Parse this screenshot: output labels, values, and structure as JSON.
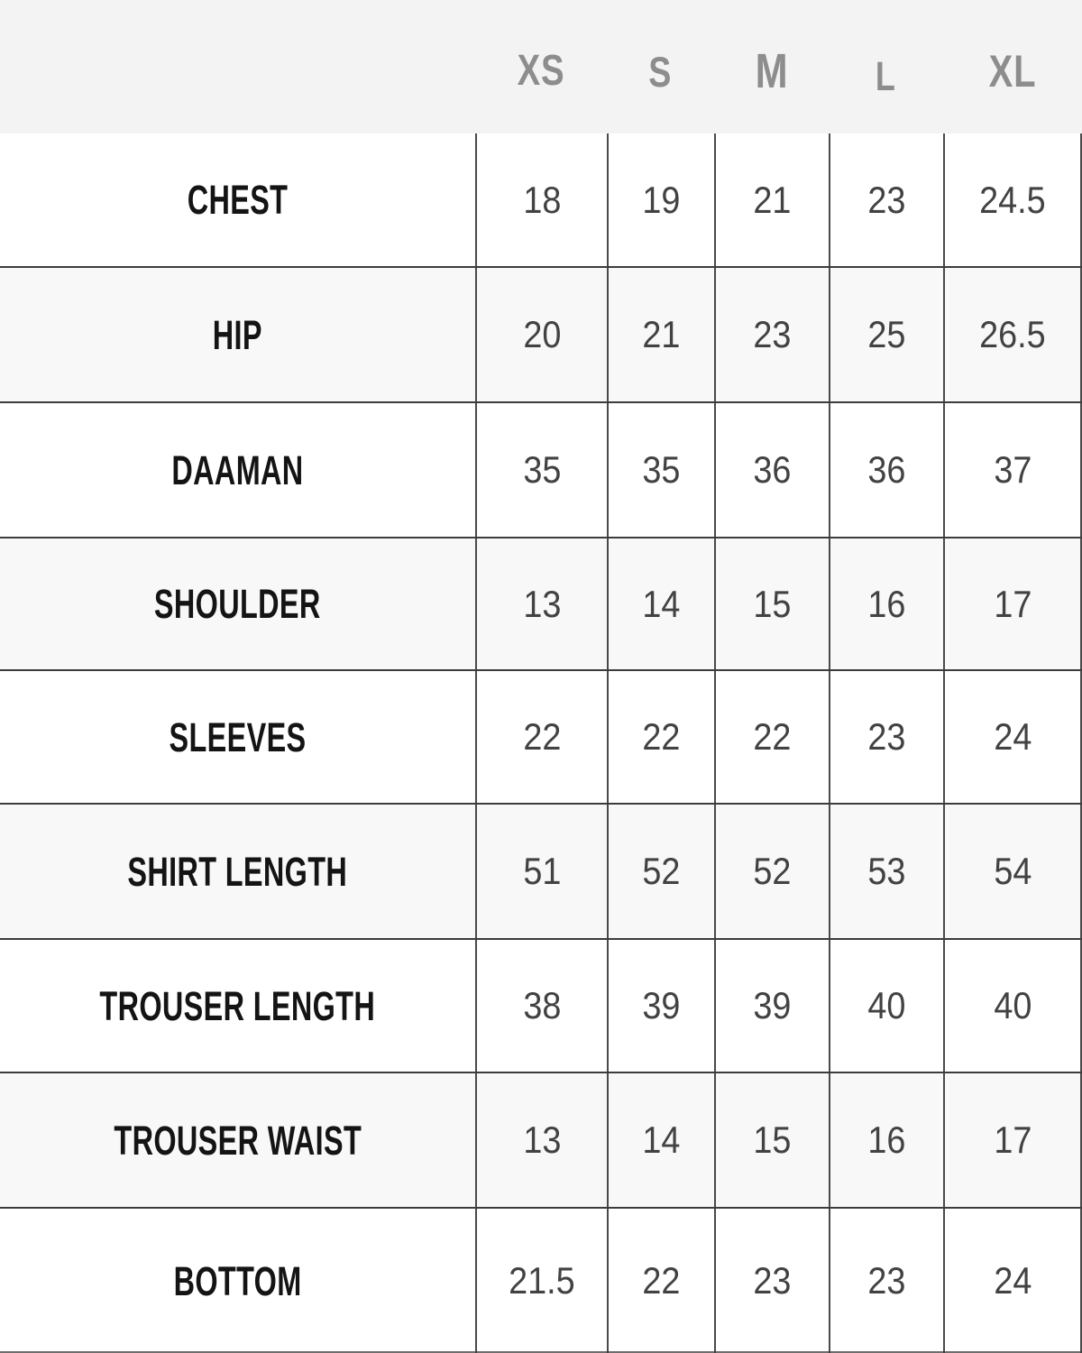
{
  "chart_data": {
    "type": "table",
    "title": "",
    "columns": [
      "XS",
      "S",
      "M",
      "L",
      "XL"
    ],
    "rows": [
      {
        "label": "CHEST",
        "values": [
          "18",
          "19",
          "21",
          "23",
          "24.5"
        ]
      },
      {
        "label": "HIP",
        "values": [
          "20",
          "21",
          "23",
          "25",
          "26.5"
        ]
      },
      {
        "label": "DAAMAN",
        "values": [
          "35",
          "35",
          "36",
          "36",
          "37"
        ]
      },
      {
        "label": "SHOULDER",
        "values": [
          "13",
          "14",
          "15",
          "16",
          "17"
        ]
      },
      {
        "label": "SLEEVES",
        "values": [
          "22",
          "22",
          "22",
          "23",
          "24"
        ]
      },
      {
        "label": "SHIRT LENGTH",
        "values": [
          "51",
          "52",
          "52",
          "53",
          "54"
        ]
      },
      {
        "label": "TROUSER LENGTH",
        "values": [
          "38",
          "39",
          "39",
          "40",
          "40"
        ]
      },
      {
        "label": "TROUSER WAIST",
        "values": [
          "13",
          "14",
          "15",
          "16",
          "17"
        ]
      },
      {
        "label": "BOTTOM",
        "values": [
          "21.5",
          "22",
          "23",
          "23",
          "24"
        ]
      }
    ]
  },
  "colors": {
    "band_bg": "#f4f3f3",
    "alt_row_bg": "#f8f8f8",
    "grid_line": "#3c3c3c",
    "vline": "#4a4a4a",
    "header_text": "#8d8d8d",
    "label_text": "#141414",
    "value_text": "#424242"
  }
}
